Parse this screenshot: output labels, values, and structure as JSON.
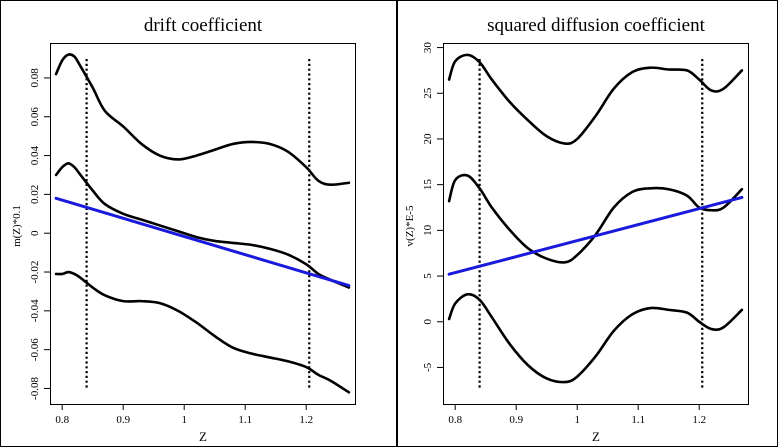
{
  "chart_data": [
    {
      "type": "line",
      "title": "drift coefficient",
      "xlabel": "Z",
      "ylabel": "m(Z)*0.1",
      "xlim": [
        0.78,
        1.28
      ],
      "ylim": [
        -0.088,
        0.098
      ],
      "xticks": [
        0.8,
        0.9,
        1.0,
        1.1,
        1.2
      ],
      "xtick_labels": [
        "0.8",
        "0.9",
        "1",
        "1.1",
        "1.2"
      ],
      "yticks": [
        -0.08,
        -0.06,
        -0.04,
        -0.02,
        0,
        0.02,
        0.04,
        0.06,
        0.08
      ],
      "ytick_labels": [
        "-0.08",
        "-0.06",
        "-0.04",
        "-0.02",
        "0",
        "0.02",
        "0.04",
        "0.06",
        "0.08"
      ],
      "vlines": [
        0.84,
        1.205
      ],
      "grid": false,
      "legend": "none",
      "series": [
        {
          "role": "upper-band",
          "color": "#000000",
          "x": [
            0.79,
            0.8,
            0.81,
            0.82,
            0.83,
            0.85,
            0.87,
            0.9,
            0.93,
            0.96,
            0.99,
            1.02,
            1.05,
            1.08,
            1.11,
            1.14,
            1.17,
            1.2,
            1.22,
            1.24,
            1.27
          ],
          "y": [
            0.082,
            0.089,
            0.092,
            0.091,
            0.086,
            0.075,
            0.063,
            0.055,
            0.046,
            0.04,
            0.038,
            0.04,
            0.043,
            0.046,
            0.047,
            0.046,
            0.042,
            0.034,
            0.027,
            0.025,
            0.026
          ]
        },
        {
          "role": "estimate",
          "color": "#000000",
          "x": [
            0.79,
            0.8,
            0.81,
            0.82,
            0.83,
            0.85,
            0.87,
            0.9,
            0.93,
            0.96,
            0.99,
            1.02,
            1.05,
            1.08,
            1.11,
            1.14,
            1.17,
            1.2,
            1.22,
            1.24,
            1.27
          ],
          "y": [
            0.03,
            0.034,
            0.036,
            0.034,
            0.03,
            0.022,
            0.015,
            0.01,
            0.007,
            0.004,
            0.001,
            -0.002,
            -0.004,
            -0.005,
            -0.006,
            -0.008,
            -0.011,
            -0.016,
            -0.021,
            -0.024,
            -0.028
          ]
        },
        {
          "role": "lower-band",
          "color": "#000000",
          "x": [
            0.79,
            0.8,
            0.81,
            0.82,
            0.83,
            0.85,
            0.87,
            0.9,
            0.93,
            0.96,
            0.99,
            1.02,
            1.05,
            1.08,
            1.11,
            1.14,
            1.17,
            1.2,
            1.22,
            1.24,
            1.27
          ],
          "y": [
            -0.021,
            -0.021,
            -0.02,
            -0.021,
            -0.023,
            -0.028,
            -0.032,
            -0.035,
            -0.035,
            -0.036,
            -0.04,
            -0.046,
            -0.053,
            -0.059,
            -0.062,
            -0.064,
            -0.066,
            -0.069,
            -0.073,
            -0.076,
            -0.082
          ]
        },
        {
          "role": "parametric-fit",
          "color": "#1a1adc",
          "x": [
            0.79,
            1.27
          ],
          "y": [
            0.018,
            -0.027
          ]
        }
      ]
    },
    {
      "type": "line",
      "title": "squared diffusion coefficient",
      "xlabel": "Z",
      "ylabel": "v(Z)*E-5",
      "xlim": [
        0.78,
        1.28
      ],
      "ylim": [
        -9.0,
        30.5
      ],
      "xticks": [
        0.8,
        0.9,
        1.0,
        1.1,
        1.2
      ],
      "xtick_labels": [
        "0.8",
        "0.9",
        "1",
        "1.1",
        "1.2"
      ],
      "yticks": [
        -5,
        0,
        5,
        10,
        15,
        20,
        25,
        30
      ],
      "ytick_labels": [
        "-5",
        "0",
        "5",
        "10",
        "15",
        "20",
        "25",
        "30"
      ],
      "vlines": [
        0.84,
        1.205
      ],
      "grid": false,
      "legend": "none",
      "series": [
        {
          "role": "upper-band",
          "color": "#000000",
          "x": [
            0.79,
            0.8,
            0.82,
            0.84,
            0.86,
            0.89,
            0.92,
            0.95,
            0.98,
            1.0,
            1.03,
            1.06,
            1.09,
            1.12,
            1.15,
            1.18,
            1.2,
            1.22,
            1.24,
            1.27
          ],
          "y": [
            26.5,
            28.5,
            29.2,
            28.4,
            26.5,
            24.0,
            22.0,
            20.3,
            19.5,
            20.0,
            22.5,
            25.5,
            27.3,
            27.8,
            27.6,
            27.5,
            26.5,
            25.3,
            25.5,
            27.5
          ]
        },
        {
          "role": "estimate",
          "color": "#000000",
          "x": [
            0.79,
            0.8,
            0.82,
            0.84,
            0.86,
            0.89,
            0.92,
            0.95,
            0.98,
            1.0,
            1.03,
            1.06,
            1.09,
            1.12,
            1.15,
            1.18,
            1.2,
            1.22,
            1.24,
            1.27
          ],
          "y": [
            13.2,
            15.5,
            16.0,
            14.6,
            12.5,
            10.0,
            8.0,
            6.9,
            6.5,
            7.3,
            9.5,
            12.5,
            14.2,
            14.6,
            14.5,
            13.8,
            12.5,
            12.2,
            12.5,
            14.5
          ]
        },
        {
          "role": "lower-band",
          "color": "#000000",
          "x": [
            0.79,
            0.8,
            0.82,
            0.84,
            0.86,
            0.89,
            0.92,
            0.95,
            0.98,
            1.0,
            1.03,
            1.06,
            1.09,
            1.12,
            1.15,
            1.18,
            1.2,
            1.22,
            1.24,
            1.27
          ],
          "y": [
            0.3,
            2.0,
            3.0,
            2.4,
            0.5,
            -2.5,
            -4.8,
            -6.2,
            -6.6,
            -6.0,
            -3.8,
            -1.0,
            0.8,
            1.5,
            1.3,
            1.0,
            0.0,
            -0.8,
            -0.6,
            1.3
          ]
        },
        {
          "role": "parametric-fit",
          "color": "#1a1adc",
          "x": [
            0.79,
            1.27
          ],
          "y": [
            5.2,
            13.6
          ]
        }
      ]
    }
  ]
}
